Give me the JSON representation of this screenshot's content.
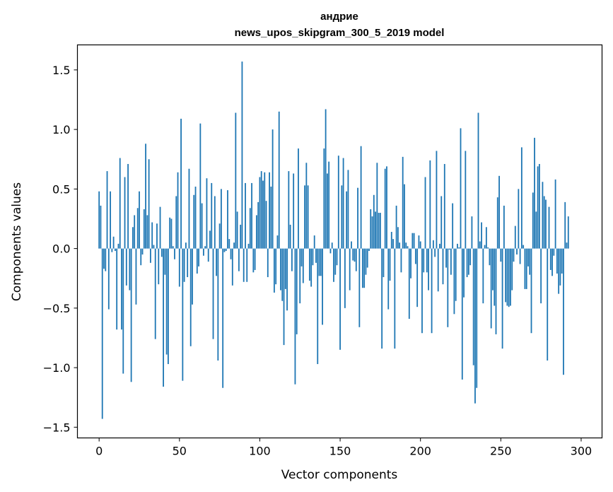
{
  "chart_data": {
    "type": "bar",
    "title": "андрие",
    "subtitle": "news_upos_skipgram_300_5_2019 model",
    "xlabel": "Vector components",
    "ylabel": "Components values",
    "xlim": [
      -13.5,
      313
    ],
    "ylim": [
      -1.59,
      1.71
    ],
    "xticks": [
      0,
      50,
      100,
      150,
      200,
      250,
      300
    ],
    "yticks": [
      -1.5,
      -1.0,
      -0.5,
      0.0,
      0.5,
      1.0,
      1.5
    ],
    "ytick_labels": [
      "−1.5",
      "−1.0",
      "−0.5",
      "0.0",
      "0.5",
      "1.0",
      "1.5"
    ],
    "grid": false,
    "color": "#1f77b4",
    "x_start": 0,
    "values": [
      0.48,
      0.36,
      -1.43,
      -0.17,
      -0.19,
      0.65,
      -0.51,
      0.48,
      -0.03,
      0.1,
      -0.02,
      -0.68,
      0.04,
      0.76,
      -0.68,
      -1.05,
      0.6,
      -0.31,
      0.71,
      -0.35,
      -1.12,
      0.18,
      0.28,
      -0.47,
      0.34,
      0.48,
      -0.14,
      -0.05,
      0.33,
      0.88,
      0.28,
      0.75,
      -0.12,
      0.22,
      0.03,
      -0.76,
      0.21,
      -0.3,
      0.35,
      -0.07,
      -1.16,
      -0.22,
      -0.89,
      -0.97,
      0.26,
      0.25,
      0.02,
      -0.09,
      0.44,
      0.64,
      -0.32,
      1.09,
      -1.11,
      -0.28,
      0.05,
      -0.24,
      0.67,
      -0.82,
      -0.47,
      0.45,
      0.52,
      -0.21,
      -0.15,
      1.05,
      0.38,
      -0.06,
      0.02,
      0.59,
      -0.11,
      0.15,
      0.55,
      -0.76,
      0.44,
      -0.23,
      -0.94,
      0.21,
      0.5,
      -1.17,
      -0.03,
      -0.02,
      0.49,
      0.08,
      -0.09,
      -0.31,
      0.05,
      1.14,
      0.31,
      -0.19,
      0.2,
      1.57,
      -0.28,
      0.55,
      -0.28,
      0.04,
      0.34,
      0.55,
      -0.2,
      -0.18,
      0.28,
      0.39,
      0.6,
      0.65,
      0.57,
      0.64,
      0.4,
      -0.24,
      0.64,
      0.52,
      1.0,
      -0.37,
      -0.3,
      0.11,
      1.15,
      -0.35,
      -0.44,
      -0.81,
      -0.34,
      -0.52,
      0.65,
      0.2,
      -0.19,
      0.63,
      -1.14,
      -0.72,
      0.84,
      -0.46,
      -0.15,
      -0.29,
      0.53,
      0.72,
      0.53,
      -0.27,
      -0.32,
      -0.14,
      0.11,
      -0.12,
      -0.97,
      -0.23,
      -0.23,
      -0.64,
      0.84,
      1.17,
      0.63,
      0.73,
      -0.04,
      0.05,
      -0.28,
      -0.22,
      -0.14,
      0.78,
      -0.85,
      0.53,
      0.76,
      -0.5,
      0.48,
      0.66,
      -0.35,
      0.06,
      -0.1,
      -0.11,
      -0.19,
      0.51,
      -0.66,
      0.86,
      -0.33,
      -0.33,
      -0.22,
      -0.16,
      -0.02,
      0.33,
      0.27,
      0.45,
      0.31,
      0.72,
      0.3,
      0.3,
      -0.84,
      -0.24,
      0.67,
      0.69,
      -0.51,
      -0.27,
      0.14,
      0.08,
      -0.84,
      0.36,
      0.18,
      0.05,
      -0.2,
      0.77,
      0.54,
      0.05,
      0.02,
      -0.59,
      -0.25,
      0.13,
      0.13,
      -0.13,
      -0.49,
      0.11,
      0.06,
      -0.71,
      -0.2,
      0.6,
      -0.2,
      -0.35,
      0.74,
      -0.71,
      0.07,
      -0.07,
      0.82,
      -0.36,
      0.04,
      0.44,
      -0.3,
      0.71,
      -0.16,
      -0.66,
      -0.01,
      -0.22,
      0.38,
      -0.55,
      -0.44,
      0.04,
      0.01,
      1.01,
      -1.1,
      -0.41,
      0.82,
      -0.24,
      -0.22,
      -0.14,
      0.27,
      -0.98,
      -1.3,
      -1.17,
      1.14,
      0.06,
      0.22,
      -0.46,
      0.03,
      0.18,
      0.01,
      -0.14,
      -0.67,
      -0.35,
      -0.48,
      -0.72,
      0.43,
      0.61,
      -0.11,
      -0.84,
      0.36,
      -0.45,
      -0.48,
      -0.49,
      -0.48,
      -0.35,
      -0.11,
      0.19,
      -0.05,
      0.5,
      -0.13,
      0.85,
      0.03,
      -0.34,
      -0.34,
      -0.15,
      -0.22,
      -0.71,
      0.47,
      0.93,
      0.31,
      0.69,
      0.71,
      -0.46,
      0.56,
      0.44,
      0.41,
      -0.94,
      0.35,
      -0.18,
      -0.23,
      -0.06,
      0.58,
      -0.21,
      -0.38,
      -0.31,
      -0.21,
      -1.06,
      0.39,
      0.05,
      0.27
    ]
  }
}
